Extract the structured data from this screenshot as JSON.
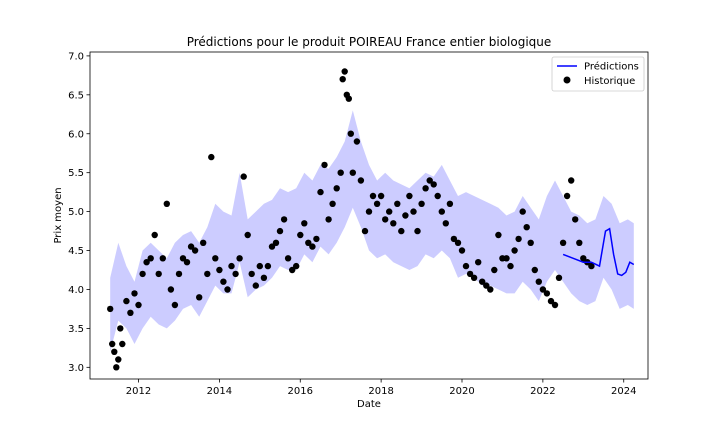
{
  "chart_data": {
    "type": "line",
    "title": "Prédictions pour le produit POIREAU France entier biologique",
    "xlabel": "Date",
    "ylabel": "Prix moyen",
    "xlim": [
      2010.8,
      2024.6
    ],
    "ylim": [
      2.85,
      7.05
    ],
    "xticks": [
      2012,
      2014,
      2016,
      2018,
      2020,
      2022,
      2024
    ],
    "yticks": [
      3.0,
      3.5,
      4.0,
      4.5,
      5.0,
      5.5,
      6.0,
      6.5,
      7.0
    ],
    "ytick_labels": [
      "3.0",
      "3.5",
      "4.0",
      "4.5",
      "5.0",
      "5.5",
      "6.0",
      "6.5",
      "7.0"
    ],
    "legend": {
      "position": "top-right",
      "entries": [
        {
          "label": "Prédictions",
          "kind": "line",
          "color": "#0000ff"
        },
        {
          "label": "Historique",
          "kind": "marker",
          "color": "#000000"
        }
      ]
    },
    "colors": {
      "prediction_line": "#0000ff",
      "confidence_band": "#0000ff",
      "band_opacity": 0.2,
      "history_points": "#000000"
    },
    "series": [
      {
        "name": "Prédictions",
        "x": [
          2022.5,
          2022.75,
          2023.0,
          2023.2,
          2023.4,
          2023.55,
          2023.65,
          2023.75,
          2023.85,
          2023.95,
          2024.05,
          2024.15,
          2024.25
        ],
        "y": [
          4.45,
          4.4,
          4.35,
          4.35,
          4.3,
          4.75,
          4.78,
          4.45,
          4.2,
          4.18,
          4.22,
          4.35,
          4.32
        ]
      },
      {
        "name": "confidence_band",
        "x": [
          2011.3,
          2011.5,
          2011.7,
          2011.9,
          2012.1,
          2012.3,
          2012.5,
          2012.7,
          2012.9,
          2013.1,
          2013.3,
          2013.5,
          2013.7,
          2013.9,
          2014.1,
          2014.3,
          2014.5,
          2014.7,
          2014.9,
          2015.1,
          2015.3,
          2015.5,
          2015.7,
          2015.9,
          2016.1,
          2016.3,
          2016.5,
          2016.7,
          2016.9,
          2017.1,
          2017.3,
          2017.5,
          2017.7,
          2017.9,
          2018.1,
          2018.3,
          2018.5,
          2018.7,
          2018.9,
          2019.1,
          2019.3,
          2019.5,
          2019.7,
          2019.9,
          2020.1,
          2020.3,
          2020.5,
          2020.7,
          2020.9,
          2021.1,
          2021.3,
          2021.5,
          2021.7,
          2021.9,
          2022.1,
          2022.3,
          2022.5,
          2022.7,
          2022.9,
          2023.1,
          2023.3,
          2023.5,
          2023.7,
          2023.9,
          2024.1,
          2024.25
        ],
        "upper": [
          4.15,
          4.6,
          4.3,
          4.1,
          4.5,
          4.6,
          4.5,
          4.4,
          4.6,
          4.7,
          4.75,
          4.6,
          4.8,
          5.1,
          5.0,
          4.95,
          5.5,
          4.9,
          5.0,
          5.1,
          5.15,
          5.3,
          5.25,
          5.3,
          5.5,
          5.4,
          5.6,
          5.55,
          5.7,
          5.9,
          6.3,
          5.9,
          5.6,
          5.4,
          5.5,
          5.4,
          5.35,
          5.3,
          5.4,
          5.5,
          5.45,
          5.6,
          5.4,
          5.2,
          5.25,
          5.2,
          5.15,
          5.1,
          5.05,
          4.95,
          5.0,
          5.2,
          5.05,
          4.9,
          5.2,
          5.4,
          5.2,
          5.0,
          4.95,
          4.85,
          4.9,
          5.2,
          5.1,
          4.85,
          4.9,
          4.85
        ],
        "lower": [
          3.2,
          3.6,
          3.5,
          3.3,
          3.5,
          3.65,
          3.55,
          3.5,
          3.6,
          3.75,
          3.8,
          3.65,
          3.85,
          4.05,
          3.95,
          3.95,
          4.35,
          3.9,
          4.0,
          4.05,
          4.15,
          4.3,
          4.25,
          4.25,
          4.45,
          4.35,
          4.55,
          4.45,
          4.6,
          4.8,
          5.05,
          4.8,
          4.5,
          4.4,
          4.45,
          4.35,
          4.3,
          4.25,
          4.3,
          4.45,
          4.4,
          4.5,
          4.4,
          4.15,
          4.2,
          4.15,
          4.05,
          4.05,
          4.0,
          3.95,
          3.95,
          4.1,
          4.0,
          3.85,
          4.1,
          4.25,
          4.1,
          3.95,
          3.85,
          3.8,
          3.85,
          4.15,
          4.0,
          3.75,
          3.8,
          3.75
        ]
      },
      {
        "name": "Historique",
        "x": [
          2011.3,
          2011.35,
          2011.4,
          2011.45,
          2011.5,
          2011.55,
          2011.6,
          2011.7,
          2011.8,
          2011.9,
          2012.0,
          2012.1,
          2012.2,
          2012.3,
          2012.4,
          2012.5,
          2012.6,
          2012.7,
          2012.8,
          2012.9,
          2013.0,
          2013.1,
          2013.2,
          2013.3,
          2013.4,
          2013.5,
          2013.6,
          2013.7,
          2013.8,
          2013.9,
          2014.0,
          2014.1,
          2014.2,
          2014.3,
          2014.4,
          2014.5,
          2014.6,
          2014.7,
          2014.8,
          2014.9,
          2015.0,
          2015.1,
          2015.2,
          2015.3,
          2015.4,
          2015.5,
          2015.6,
          2015.7,
          2015.8,
          2015.9,
          2016.0,
          2016.1,
          2016.2,
          2016.3,
          2016.4,
          2016.5,
          2016.6,
          2016.7,
          2016.8,
          2016.9,
          2017.0,
          2017.05,
          2017.1,
          2017.15,
          2017.2,
          2017.25,
          2017.3,
          2017.4,
          2017.5,
          2017.6,
          2017.7,
          2017.8,
          2017.9,
          2018.0,
          2018.1,
          2018.2,
          2018.3,
          2018.4,
          2018.5,
          2018.6,
          2018.7,
          2018.8,
          2018.9,
          2019.0,
          2019.1,
          2019.2,
          2019.3,
          2019.4,
          2019.5,
          2019.6,
          2019.7,
          2019.8,
          2019.9,
          2020.0,
          2020.1,
          2020.2,
          2020.3,
          2020.4,
          2020.5,
          2020.6,
          2020.7,
          2020.8,
          2020.9,
          2021.0,
          2021.1,
          2021.2,
          2021.3,
          2021.4,
          2021.5,
          2021.6,
          2021.7,
          2021.8,
          2021.9,
          2022.0,
          2022.1,
          2022.2,
          2022.3,
          2022.4,
          2022.5,
          2022.6,
          2022.7,
          2022.8,
          2022.9,
          2023.0,
          2023.1,
          2023.2
        ],
        "y": [
          3.75,
          3.3,
          3.2,
          3.0,
          3.1,
          3.5,
          3.3,
          3.85,
          3.7,
          3.95,
          3.8,
          4.2,
          4.35,
          4.4,
          4.7,
          4.2,
          4.4,
          5.1,
          4.0,
          3.8,
          4.2,
          4.4,
          4.35,
          4.55,
          4.5,
          3.9,
          4.6,
          4.2,
          5.7,
          4.4,
          4.25,
          4.1,
          4.0,
          4.3,
          4.2,
          4.4,
          5.45,
          4.7,
          4.2,
          4.05,
          4.3,
          4.15,
          4.3,
          4.55,
          4.6,
          4.75,
          4.9,
          4.4,
          4.25,
          4.3,
          4.7,
          4.85,
          4.6,
          4.55,
          4.65,
          5.25,
          5.6,
          4.9,
          5.1,
          5.3,
          5.5,
          6.7,
          6.8,
          6.5,
          6.45,
          6.0,
          5.5,
          5.9,
          5.4,
          4.75,
          5.0,
          5.2,
          5.1,
          5.2,
          4.9,
          5.0,
          4.85,
          5.1,
          4.75,
          4.95,
          5.2,
          5.0,
          4.75,
          5.1,
          5.3,
          5.4,
          5.35,
          5.2,
          5.0,
          4.85,
          5.1,
          4.65,
          4.6,
          4.5,
          4.3,
          4.2,
          4.15,
          4.35,
          4.1,
          4.05,
          4.0,
          4.25,
          4.7,
          4.4,
          4.4,
          4.3,
          4.5,
          4.65,
          5.0,
          4.8,
          4.6,
          4.25,
          4.1,
          4.0,
          3.95,
          3.85,
          3.8,
          4.15,
          4.6,
          5.2,
          5.4,
          4.9,
          4.6,
          4.4,
          4.35,
          4.3
        ]
      }
    ]
  }
}
